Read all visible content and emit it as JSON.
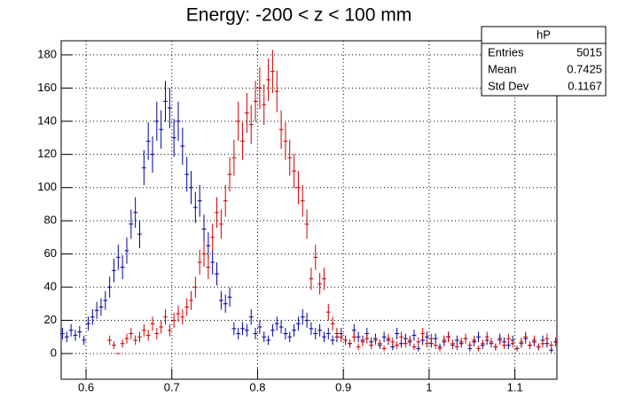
{
  "chart_data": {
    "type": "errorbar-histogram",
    "title": "Energy: -200 < z < 100 mm",
    "x": [
      0.5725,
      0.5775,
      0.5825,
      0.5875,
      0.5925,
      0.5975,
      0.6025,
      0.6075,
      0.6125,
      0.6175,
      0.6225,
      0.6275,
      0.6325,
      0.6375,
      0.6425,
      0.6475,
      0.6525,
      0.6575,
      0.6625,
      0.6675,
      0.6725,
      0.6775,
      0.6825,
      0.6875,
      0.6925,
      0.6975,
      0.7025,
      0.7075,
      0.7125,
      0.7175,
      0.7225,
      0.7275,
      0.7325,
      0.7375,
      0.7425,
      0.7475,
      0.7525,
      0.7575,
      0.7625,
      0.7675,
      0.7725,
      0.7775,
      0.7825,
      0.7875,
      0.7925,
      0.7975,
      0.8025,
      0.8075,
      0.8125,
      0.8175,
      0.8225,
      0.8275,
      0.8325,
      0.8375,
      0.8425,
      0.8475,
      0.8525,
      0.8575,
      0.8625,
      0.8675,
      0.8725,
      0.8775,
      0.8825,
      0.8875,
      0.8925,
      0.8975,
      0.9025,
      0.9075,
      0.9125,
      0.9175,
      0.9225,
      0.9275,
      0.9325,
      0.9375,
      0.9425,
      0.9475,
      0.9525,
      0.9575,
      0.9625,
      0.9675,
      0.9725,
      0.9775,
      0.9825,
      0.9875,
      0.9925,
      0.9975,
      1.0025,
      1.0075,
      1.0125,
      1.0175,
      1.0225,
      1.0275,
      1.0325,
      1.0375,
      1.0425,
      1.0475,
      1.0525,
      1.0575,
      1.0625,
      1.0675,
      1.0725,
      1.0775,
      1.0825,
      1.0875,
      1.0925,
      1.0975,
      1.1025,
      1.1075,
      1.1125,
      1.1175,
      1.1225,
      1.1275,
      1.1325,
      1.1375,
      1.1425,
      1.1475
    ],
    "series": [
      {
        "color": "#000099",
        "values": [
          12,
          10,
          14,
          11,
          13,
          8,
          18,
          22,
          26,
          28,
          32,
          40,
          50,
          58,
          52,
          62,
          78,
          85,
          72,
          112,
          128,
          120,
          140,
          135,
          152,
          148,
          130,
          140,
          125,
          108,
          100,
          88,
          92,
          75,
          65,
          55,
          48,
          32,
          30,
          34,
          15,
          12,
          15,
          14,
          22,
          12,
          16,
          10,
          8,
          14,
          18,
          16,
          12,
          10,
          14,
          18,
          22,
          20,
          15,
          12,
          14,
          10,
          12,
          8,
          10,
          12,
          8,
          6,
          14,
          10,
          8,
          12,
          7,
          9,
          5,
          10,
          8,
          4,
          12,
          6,
          9,
          7,
          11,
          3,
          8,
          10,
          6,
          9,
          4,
          7,
          10,
          5,
          8,
          6,
          9,
          3,
          7,
          10,
          5,
          8,
          6,
          4,
          9,
          7,
          5,
          8,
          3,
          6,
          9,
          5,
          7,
          4,
          8,
          6,
          2,
          7
        ]
      },
      {
        "color": "#cc0000",
        "values": [
          null,
          null,
          null,
          null,
          null,
          null,
          null,
          null,
          null,
          null,
          null,
          8,
          5,
          0,
          6,
          9,
          12,
          8,
          10,
          14,
          11,
          18,
          12,
          16,
          22,
          14,
          20,
          24,
          22,
          28,
          32,
          40,
          55,
          60,
          52,
          70,
          85,
          78,
          92,
          108,
          118,
          140,
          128,
          145,
          138,
          152,
          160,
          150,
          165,
          170,
          158,
          135,
          128,
          118,
          110,
          100,
          92,
          78,
          45,
          58,
          42,
          45,
          25,
          18,
          12,
          10,
          8,
          6,
          10,
          4,
          7,
          9,
          5,
          8,
          6,
          3,
          9,
          7,
          5,
          10,
          6,
          8,
          4,
          7,
          12,
          6,
          9,
          5,
          3,
          8,
          10,
          6,
          4,
          7,
          9,
          5,
          8,
          3,
          6,
          10,
          7,
          4,
          8,
          5,
          9,
          6,
          3,
          7,
          10,
          5,
          8,
          4,
          6,
          9,
          5,
          7
        ]
      }
    ],
    "error_bars": "sqrt",
    "xlim": [
      0.571,
      1.149
    ],
    "xticks": [
      0.6,
      0.7,
      0.8,
      0.9,
      1,
      1.1
    ],
    "ylim": [
      -15.5,
      188.5
    ],
    "yticks": [
      0,
      20,
      40,
      60,
      80,
      100,
      120,
      140,
      160,
      180
    ],
    "grid": true,
    "stats_box": {
      "title": "hP",
      "rows": [
        [
          "Entries",
          "5015"
        ],
        [
          "Mean",
          "0.7425"
        ],
        [
          "Std Dev",
          "0.1167"
        ]
      ]
    }
  }
}
